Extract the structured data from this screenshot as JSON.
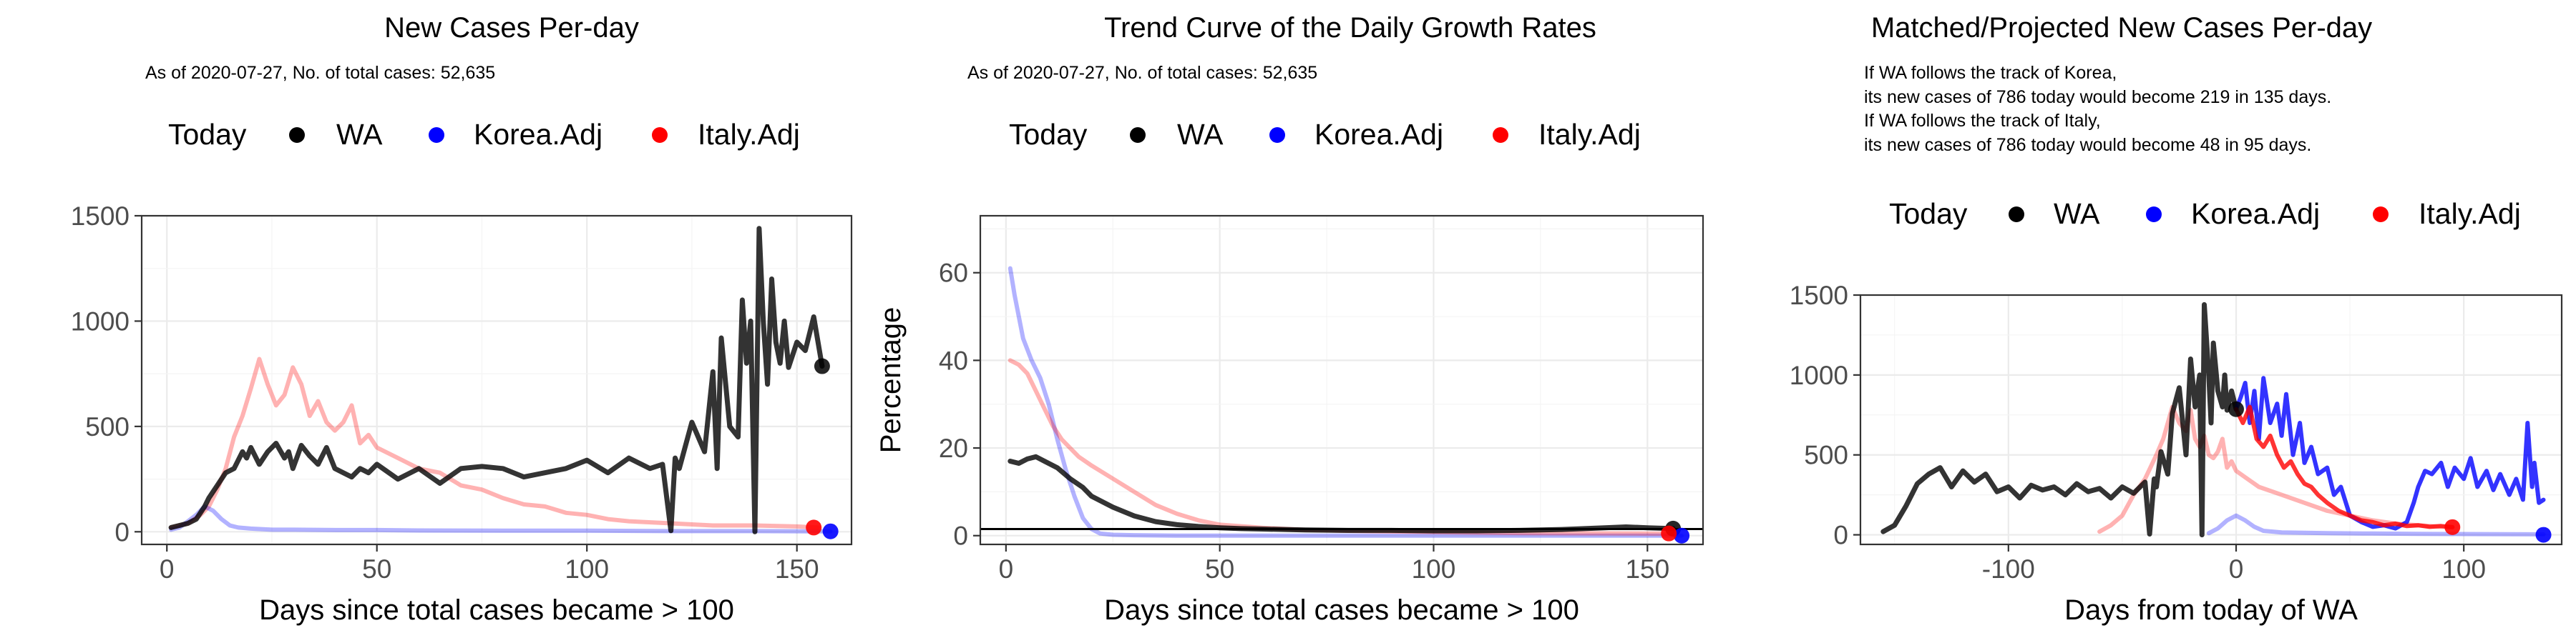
{
  "colors": {
    "wa": "#000000",
    "korea": "#0000ff",
    "italy": "#ff0000"
  },
  "legend": {
    "today_label": "Today",
    "entries": [
      "WA",
      "Korea.Adj",
      "Italy.Adj"
    ]
  },
  "chart_data": [
    {
      "type": "line",
      "title": "New Cases Per-day",
      "subtitle": [
        "As of 2020-07-27, No. of total cases: 52,635"
      ],
      "xlabel": "Days since total cases became > 100",
      "ylabel": "",
      "xlim": [
        -6,
        163
      ],
      "ylim": [
        -60,
        1500
      ],
      "xticks": [
        0,
        50,
        100,
        150
      ],
      "yticks": [
        0,
        500,
        1000,
        1500
      ],
      "xtick_labels": [
        "0",
        "50",
        "100",
        "150"
      ],
      "ytick_labels": [
        "0",
        "500",
        "1000",
        "1500"
      ],
      "grid": true,
      "legend_position": "top",
      "hline": null,
      "series": [
        {
          "name": "Italy.Adj",
          "style": "faded",
          "x": [
            1,
            5,
            8,
            10,
            12,
            14,
            16,
            18,
            20,
            22,
            24,
            26,
            28,
            30,
            32,
            34,
            36,
            38,
            40,
            42,
            44,
            46,
            48,
            50,
            55,
            60,
            65,
            70,
            75,
            80,
            85,
            90,
            95,
            100,
            105,
            110,
            120,
            130,
            140,
            150,
            155
          ],
          "y": [
            20,
            40,
            80,
            120,
            200,
            300,
            450,
            550,
            680,
            820,
            700,
            600,
            650,
            780,
            700,
            550,
            620,
            520,
            480,
            520,
            600,
            420,
            460,
            400,
            350,
            300,
            280,
            220,
            200,
            160,
            130,
            120,
            90,
            80,
            60,
            50,
            40,
            30,
            30,
            25,
            20
          ]
        },
        {
          "name": "Korea.Adj",
          "style": "faded",
          "x": [
            1,
            3,
            5,
            7,
            9,
            11,
            13,
            15,
            17,
            20,
            25,
            30,
            40,
            50,
            60,
            80,
            100,
            120,
            140,
            155,
            158
          ],
          "y": [
            10,
            20,
            50,
            80,
            120,
            100,
            60,
            30,
            20,
            15,
            10,
            10,
            8,
            8,
            6,
            5,
            5,
            3,
            3,
            2,
            2
          ]
        },
        {
          "name": "WA",
          "style": "solid",
          "x": [
            1,
            3,
            5,
            7,
            9,
            10,
            12,
            14,
            16,
            18,
            19,
            20,
            22,
            24,
            26,
            28,
            29,
            30,
            32,
            34,
            36,
            38,
            40,
            42,
            44,
            46,
            48,
            50,
            55,
            60,
            65,
            70,
            75,
            80,
            85,
            90,
            95,
            100,
            105,
            110,
            115,
            118,
            120,
            121,
            122,
            125,
            128,
            130,
            131,
            132,
            134,
            136,
            137,
            138,
            139,
            140,
            141,
            142,
            143,
            144,
            145,
            146,
            147,
            148,
            150,
            152,
            154,
            156
          ],
          "y": [
            20,
            30,
            40,
            60,
            120,
            160,
            220,
            280,
            300,
            380,
            350,
            400,
            320,
            380,
            420,
            350,
            380,
            300,
            410,
            360,
            320,
            400,
            300,
            280,
            260,
            300,
            280,
            320,
            250,
            300,
            230,
            300,
            310,
            300,
            260,
            280,
            300,
            340,
            280,
            350,
            300,
            320,
            5,
            350,
            300,
            520,
            380,
            760,
            300,
            920,
            500,
            450,
            1100,
            800,
            1000,
            0,
            1440,
            1000,
            700,
            1200,
            900,
            800,
            1000,
            780,
            900,
            860,
            1020,
            786
          ]
        }
      ],
      "today_markers": [
        {
          "series": "WA",
          "x": 156,
          "y": 786
        },
        {
          "series": "Korea.Adj",
          "x": 158,
          "y": 2
        },
        {
          "series": "Italy.Adj",
          "x": 154,
          "y": 20
        }
      ]
    },
    {
      "type": "line",
      "title": "Trend Curve of the Daily Growth Rates",
      "subtitle": [
        "As of 2020-07-27, No. of total cases: 52,635"
      ],
      "xlabel": "Days since total cases became > 100",
      "ylabel": "Percentage",
      "xlim": [
        -6,
        163
      ],
      "ylim": [
        -2,
        73
      ],
      "xticks": [
        0,
        50,
        100,
        150
      ],
      "yticks": [
        0,
        20,
        40,
        60
      ],
      "xtick_labels": [
        "0",
        "50",
        "100",
        "150"
      ],
      "ytick_labels": [
        "0",
        "20",
        "40",
        "60"
      ],
      "grid": true,
      "legend_position": "top",
      "hline": 1.5,
      "series": [
        {
          "name": "Korea.Adj",
          "style": "faded",
          "x": [
            1,
            2,
            4,
            6,
            8,
            10,
            12,
            14,
            16,
            18,
            20,
            22,
            25,
            30,
            40,
            60,
            100,
            150,
            158
          ],
          "y": [
            61,
            55,
            45,
            40,
            36,
            30,
            22,
            15,
            9,
            4,
            1.5,
            0.5,
            0.2,
            0.1,
            0,
            0,
            0,
            0,
            0
          ]
        },
        {
          "name": "Italy.Adj",
          "style": "faded",
          "x": [
            1,
            3,
            5,
            7,
            9,
            11,
            13,
            15,
            17,
            20,
            25,
            30,
            35,
            40,
            45,
            50,
            60,
            70,
            80,
            100,
            120,
            150,
            156
          ],
          "y": [
            40,
            39,
            37,
            33,
            29,
            25,
            22,
            20,
            18,
            16,
            13,
            10,
            7,
            5,
            3.5,
            2.5,
            1.8,
            1.3,
            1.1,
            0.8,
            0.6,
            0.5,
            0.5
          ]
        },
        {
          "name": "WA",
          "style": "solid",
          "x": [
            1,
            3,
            5,
            7,
            9,
            12,
            15,
            18,
            20,
            25,
            30,
            35,
            40,
            45,
            50,
            55,
            60,
            70,
            80,
            90,
            100,
            110,
            120,
            130,
            140,
            145,
            150,
            156
          ],
          "y": [
            17,
            16.5,
            17.5,
            18,
            17,
            15.5,
            13,
            11,
            9,
            6.5,
            4.5,
            3.2,
            2.5,
            2.1,
            1.8,
            1.6,
            1.5,
            1.3,
            1.2,
            1.2,
            1.1,
            1.1,
            1.2,
            1.4,
            1.8,
            2.0,
            1.8,
            1.6
          ]
        }
      ],
      "today_markers": [
        {
          "series": "WA",
          "x": 156,
          "y": 1.6
        },
        {
          "series": "Korea.Adj",
          "x": 158,
          "y": 0
        },
        {
          "series": "Italy.Adj",
          "x": 155,
          "y": 0.5
        }
      ]
    },
    {
      "type": "line",
      "title": "Matched/Projected New Cases Per-day",
      "subtitle": [
        "If WA follows the track of Korea,",
        "its new cases of 786 today would become 219 in 135 days.",
        "If WA follows the track of Italy,",
        "its new cases of 786 today would become 48 in 95 days."
      ],
      "xlabel": "Days from today of WA",
      "ylabel": "",
      "xlim": [
        -165,
        143
      ],
      "ylim": [
        -60,
        1500
      ],
      "xticks": [
        -100,
        0,
        100
      ],
      "yticks": [
        0,
        500,
        1000,
        1500
      ],
      "xtick_labels": [
        "-100",
        "0",
        "100"
      ],
      "ytick_labels": [
        "0",
        "500",
        "1000",
        "1500"
      ],
      "grid": true,
      "legend_position": "top",
      "hline": null,
      "series": [
        {
          "name": "Italy.Adj",
          "style": "faded",
          "x": [
            -60,
            -55,
            -50,
            -45,
            -40,
            -35,
            -32,
            -28,
            -25,
            -22,
            -20,
            -18,
            -16,
            -14,
            -12,
            -10,
            -8,
            -6,
            -4,
            -2,
            0,
            5,
            10,
            20,
            30,
            40,
            50,
            60,
            70,
            80,
            90,
            95
          ],
          "y": [
            20,
            60,
            120,
            250,
            350,
            500,
            600,
            800,
            700,
            650,
            780,
            600,
            550,
            620,
            500,
            480,
            520,
            600,
            420,
            460,
            400,
            350,
            300,
            250,
            200,
            150,
            120,
            90,
            70,
            60,
            50,
            48
          ]
        },
        {
          "name": "Korea.Adj",
          "style": "faded",
          "x": [
            -12,
            -8,
            -4,
            0,
            4,
            8,
            12,
            20,
            40,
            60,
            80,
            100,
            120,
            135
          ],
          "y": [
            10,
            40,
            90,
            120,
            90,
            50,
            25,
            15,
            10,
            8,
            6,
            5,
            4,
            3
          ]
        },
        {
          "name": "WA",
          "style": "solid",
          "x": [
            -155,
            -150,
            -145,
            -140,
            -135,
            -130,
            -125,
            -120,
            -115,
            -110,
            -105,
            -100,
            -95,
            -90,
            -85,
            -80,
            -75,
            -70,
            -65,
            -60,
            -55,
            -50,
            -45,
            -40,
            -38,
            -36,
            -35,
            -33,
            -30,
            -28,
            -25,
            -22,
            -20,
            -18,
            -16,
            -15,
            -14,
            -12,
            -11,
            -10,
            -8,
            -6,
            -5,
            -4,
            -2,
            0
          ],
          "y": [
            20,
            60,
            180,
            320,
            380,
            420,
            300,
            400,
            330,
            380,
            270,
            300,
            230,
            310,
            280,
            300,
            250,
            320,
            270,
            290,
            230,
            300,
            260,
            330,
            5,
            350,
            300,
            520,
            380,
            760,
            920,
            500,
            1100,
            800,
            1000,
            0,
            1440,
            1000,
            700,
            1200,
            900,
            800,
            1000,
            780,
            900,
            786
          ]
        },
        {
          "name": "Korea.Adj",
          "style": "solid",
          "x": [
            0,
            2,
            4,
            6,
            8,
            10,
            12,
            15,
            18,
            20,
            22,
            25,
            28,
            30,
            33,
            36,
            40,
            43,
            46,
            50,
            55,
            60,
            65,
            70,
            75,
            78,
            80,
            83,
            86,
            90,
            93,
            96,
            100,
            103,
            106,
            110,
            113,
            116,
            120,
            123,
            126,
            128,
            130,
            131,
            133,
            135
          ],
          "y": [
            786,
            860,
            950,
            700,
            900,
            600,
            980,
            700,
            820,
            620,
            880,
            500,
            700,
            450,
            550,
            380,
            420,
            250,
            300,
            120,
            80,
            50,
            60,
            40,
            80,
            200,
            300,
            400,
            380,
            450,
            300,
            420,
            350,
            480,
            300,
            400,
            280,
            380,
            250,
            350,
            220,
            700,
            300,
            450,
            200,
            219
          ]
        },
        {
          "name": "Italy.Adj",
          "style": "solid",
          "x": [
            0,
            3,
            6,
            9,
            12,
            15,
            18,
            21,
            24,
            27,
            30,
            33,
            36,
            40,
            45,
            50,
            55,
            60,
            65,
            70,
            75,
            80,
            85,
            90,
            95
          ],
          "y": [
            786,
            700,
            800,
            600,
            550,
            620,
            500,
            420,
            460,
            380,
            320,
            300,
            250,
            200,
            150,
            120,
            90,
            80,
            60,
            70,
            55,
            60,
            50,
            55,
            48
          ]
        }
      ],
      "today_markers": [
        {
          "series": "WA",
          "x": 0,
          "y": 786
        },
        {
          "series": "Korea.Adj",
          "x": 135,
          "y": 0
        },
        {
          "series": "Italy.Adj",
          "x": 95,
          "y": 48
        }
      ]
    }
  ]
}
